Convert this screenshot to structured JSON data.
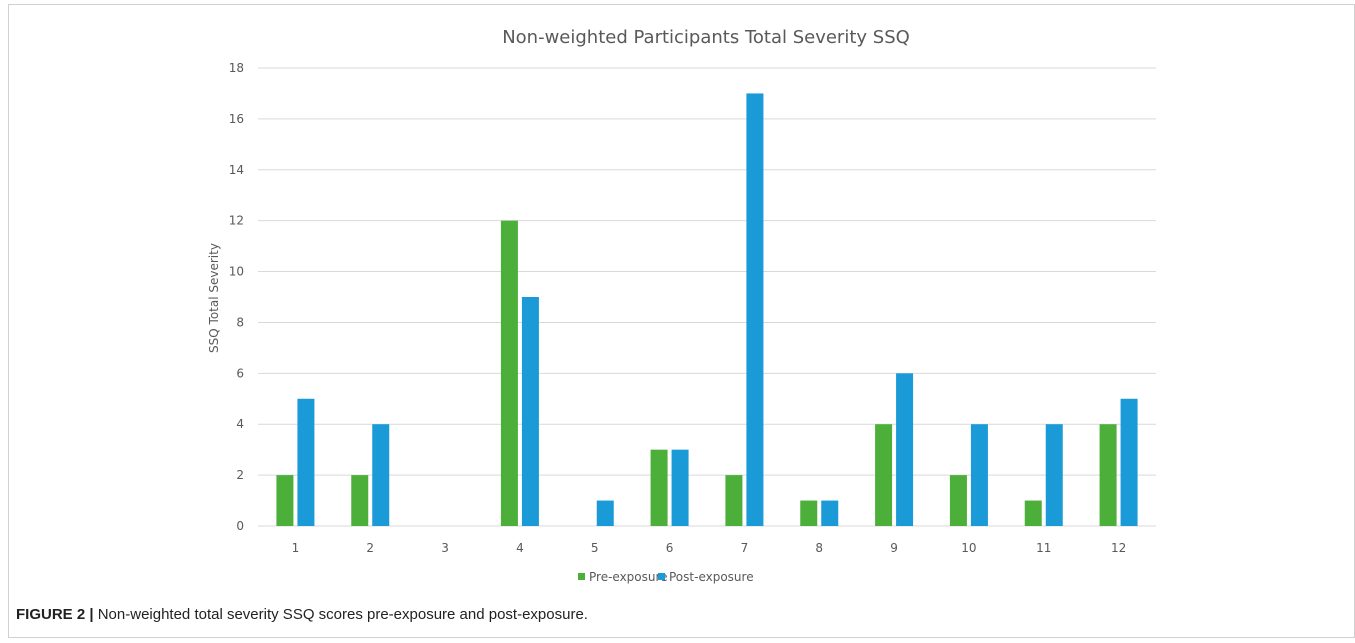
{
  "figure_label": "FIGURE 2 |",
  "caption": "Non-weighted total severity SSQ scores pre-exposure and post-exposure.",
  "colors": {
    "pre": "#4caf3a",
    "post": "#1a9ad6",
    "grid": "#d9d9d9",
    "text": "#595959"
  },
  "chart_data": {
    "type": "bar",
    "title": "Non-weighted Participants Total Severity SSQ",
    "xlabel": "",
    "ylabel": "SSQ Total Severity",
    "categories": [
      "1",
      "2",
      "3",
      "4",
      "5",
      "6",
      "7",
      "8",
      "9",
      "10",
      "11",
      "12"
    ],
    "series": [
      {
        "name": "Pre-exposure",
        "values": [
          2,
          2,
          0,
          12,
          0,
          3,
          2,
          1,
          4,
          2,
          1,
          4
        ]
      },
      {
        "name": "Post-exposure",
        "values": [
          5,
          4,
          0,
          9,
          1,
          3,
          17,
          1,
          6,
          4,
          4,
          5
        ]
      }
    ],
    "ylim": [
      0,
      18
    ],
    "yticks": [
      0,
      2,
      4,
      6,
      8,
      10,
      12,
      14,
      16,
      18
    ],
    "grid": true,
    "legend_position": "bottom-center"
  }
}
